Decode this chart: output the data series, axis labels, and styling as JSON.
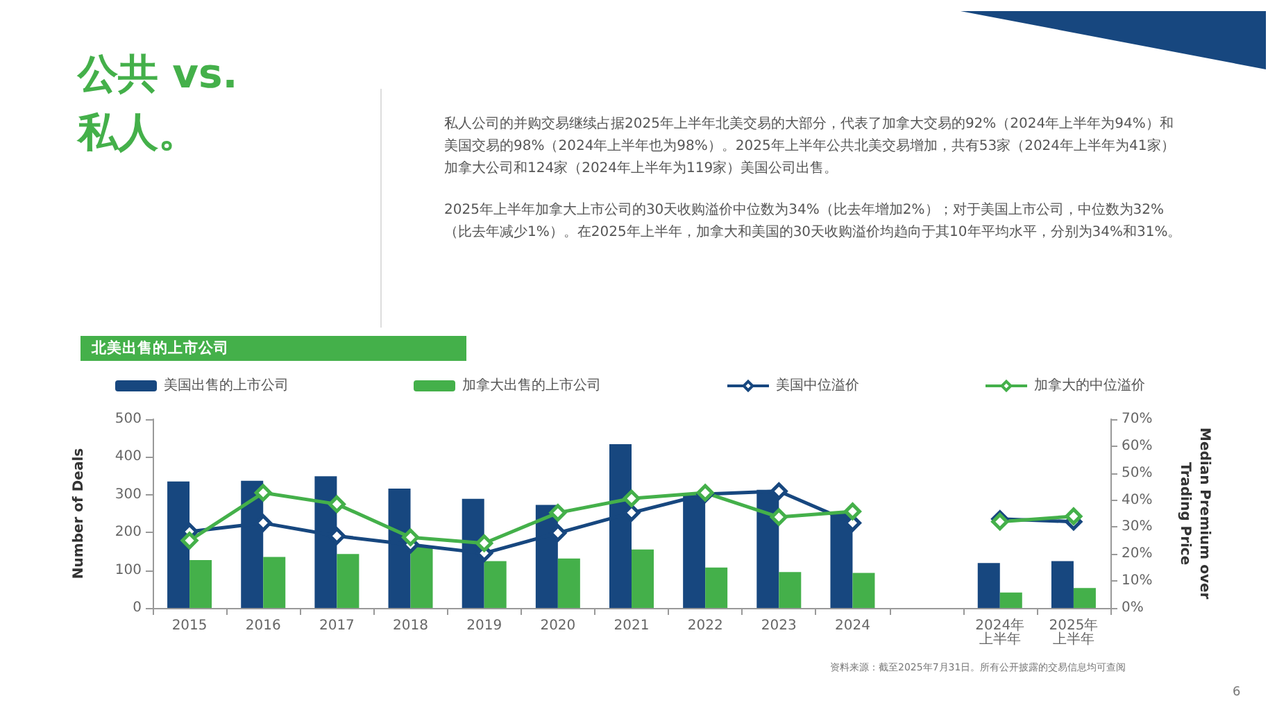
{
  "chart_data": {
    "type": "bar",
    "title": "公共 vs. 私人。",
    "subtitle": "北美出售的上市公司",
    "annotations": [
      "私人公司的并购交易继续占据2025年上半年北美交易的大部分，代表了加拿大交易的92%（2024年上半年为94%）和美国交易的98%（2024年上半年也为98%）。2025年上半年公共北美交易增加，共有53家（2024年上半年为41家）加拿大公司和124家（2024年上半年为119家）美国公司出售。",
      "2025年上半年加拿大上市公司的30天收购溢价中位数为34%（比去年增加2%）；对于美国上市公司，中位数为32%（比去年减少1%）。在2025年上半年，加拿大和美国的30天收购溢价均趋向于其10年平均水平，分别为34%和31%。",
      "资料来源：截至2025年7月31日。所有公开披露的交易信息均可查阅",
      "6"
    ],
    "categories": [
      "2015",
      "2016",
      "2017",
      "2018",
      "2019",
      "2020",
      "2021",
      "2022",
      "2023",
      "2024",
      null,
      "2024年上半年",
      "2025年上半年"
    ],
    "ylabel": "Number of Deals",
    "y2label": "Median Premium over Trading Price",
    "ylim": [
      0,
      500
    ],
    "yticks": [
      0,
      100,
      200,
      300,
      400,
      500
    ],
    "y2lim": [
      0,
      70
    ],
    "y2ticks": [
      {
        "value": 0,
        "label": "0%"
      },
      {
        "value": 10,
        "label": "10%"
      },
      {
        "value": 20,
        "label": "20%"
      },
      {
        "value": 30,
        "label": "30%"
      },
      {
        "value": 40,
        "label": "40%"
      },
      {
        "value": 50,
        "label": "50%"
      },
      {
        "value": 60,
        "label": "60%"
      },
      {
        "value": 70,
        "label": "70%"
      }
    ],
    "legend": "top",
    "marker": "diamond",
    "series": [
      {
        "name": "美国出售的上市公司",
        "color": "#17477f",
        "values": [
          335,
          337,
          349,
          316,
          289,
          273,
          434,
          305,
          313,
          252,
          null,
          119,
          124
        ]
      },
      {
        "name": "加拿大出售的上市公司",
        "color": "#44b04a",
        "values": [
          127,
          135,
          143,
          165,
          124,
          131,
          155,
          107,
          95,
          93,
          null,
          41,
          53
        ]
      },
      {
        "name": "美国中位溢价",
        "type": "line",
        "axis": "y2",
        "color": "#17477f",
        "values": [
          28.3,
          31.5,
          26.7,
          23.5,
          20.3,
          27.8,
          35.3,
          42.2,
          43.3,
          31.5,
          null,
          33,
          32
        ]
      },
      {
        "name": "加拿大的中位溢价",
        "type": "line",
        "axis": "y2",
        "color": "#44b04a",
        "values": [
          25,
          42.7,
          38.5,
          26.2,
          24,
          35.3,
          40.6,
          42.7,
          33.7,
          35.8,
          null,
          32,
          34
        ]
      }
    ]
  }
}
